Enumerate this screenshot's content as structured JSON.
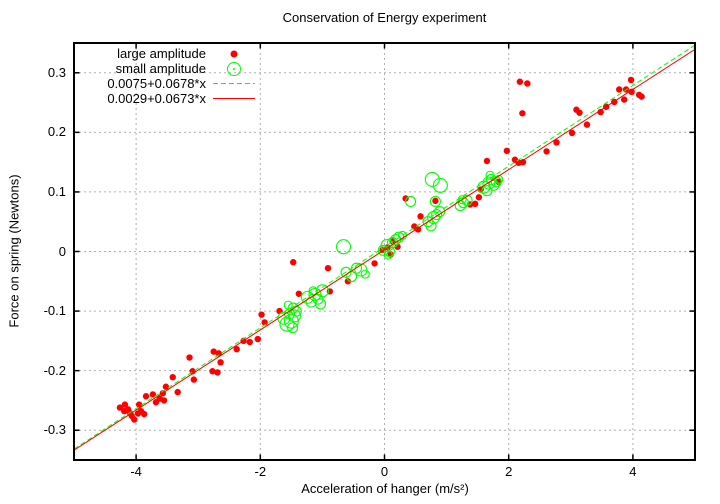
{
  "chart_data": {
    "type": "scatter",
    "title": "Conservation of Energy experiment",
    "xlabel": "Acceleration of hanger (m/s²)",
    "ylabel": "Force on spring (Newtons)",
    "xlim": [
      -5,
      5
    ],
    "ylim": [
      -0.35,
      0.35
    ],
    "xticks": [
      -4,
      -2,
      0,
      2,
      4
    ],
    "xtick_labels": [
      "-4",
      "-2",
      "0",
      "2",
      "4"
    ],
    "yticks": [
      -0.3,
      -0.2,
      -0.1,
      0,
      0.1,
      0.2,
      0.3
    ],
    "ytick_labels": [
      "-0.3",
      "-0.2",
      "-0.1",
      "0",
      "0.1",
      "0.2",
      "0.3"
    ],
    "grid": true,
    "grid_color": "#b0b0b0",
    "border_color": "#000000",
    "background": "#ffffff",
    "legend_position": "top-left-inside",
    "series": [
      {
        "name": "large amplitude",
        "type": "points",
        "marker": "filled-circle",
        "color": "#ff0000",
        "points": [
          [
            -4.26,
            -0.262
          ],
          [
            -4.19,
            -0.268
          ],
          [
            -4.18,
            -0.257
          ],
          [
            -4.13,
            -0.265
          ],
          [
            -4.1,
            -0.271
          ],
          [
            -4.07,
            -0.276
          ],
          [
            -4.03,
            -0.282
          ],
          [
            -3.97,
            -0.272
          ],
          [
            -3.95,
            -0.257
          ],
          [
            -3.92,
            -0.268
          ],
          [
            -3.87,
            -0.273
          ],
          [
            -3.84,
            -0.243
          ],
          [
            -3.73,
            -0.24
          ],
          [
            -3.68,
            -0.253
          ],
          [
            -3.62,
            -0.247
          ],
          [
            -3.57,
            -0.238
          ],
          [
            -3.55,
            -0.25
          ],
          [
            -3.52,
            -0.227
          ],
          [
            -3.41,
            -0.211
          ],
          [
            -3.33,
            -0.236
          ],
          [
            -3.14,
            -0.178
          ],
          [
            -3.09,
            -0.201
          ],
          [
            -3.07,
            -0.215
          ],
          [
            -2.77,
            -0.201
          ],
          [
            -2.75,
            -0.168
          ],
          [
            -2.69,
            -0.203
          ],
          [
            -2.67,
            -0.171
          ],
          [
            -2.64,
            -0.186
          ],
          [
            -2.38,
            -0.164
          ],
          [
            -2.27,
            -0.15
          ],
          [
            -2.17,
            -0.152
          ],
          [
            -2.04,
            -0.147
          ],
          [
            -1.98,
            -0.106
          ],
          [
            -1.93,
            -0.119
          ],
          [
            -1.69,
            -0.1
          ],
          [
            -1.47,
            -0.018
          ],
          [
            -1.38,
            -0.071
          ],
          [
            -0.91,
            -0.028
          ],
          [
            -0.88,
            -0.067
          ],
          [
            -0.59,
            -0.05
          ],
          [
            -0.16,
            -0.02
          ],
          [
            -0.03,
            0.003
          ],
          [
            0.05,
            0.007
          ],
          [
            0.1,
            -0.005
          ],
          [
            0.13,
            0.017
          ],
          [
            0.21,
            0.008
          ],
          [
            0.34,
            0.089
          ],
          [
            0.48,
            0.042
          ],
          [
            0.54,
            0.037
          ],
          [
            0.58,
            0.059
          ],
          [
            0.82,
            0.085
          ],
          [
            1.38,
            0.079
          ],
          [
            1.46,
            0.08
          ],
          [
            1.52,
            0.091
          ],
          [
            1.55,
            0.104
          ],
          [
            1.84,
            0.117
          ],
          [
            1.65,
            0.152
          ],
          [
            1.97,
            0.169
          ],
          [
            2.1,
            0.154
          ],
          [
            2.16,
            0.149
          ],
          [
            2.23,
            0.15
          ],
          [
            2.18,
            0.285
          ],
          [
            2.3,
            0.282
          ],
          [
            2.22,
            0.232
          ],
          [
            2.61,
            0.168
          ],
          [
            2.77,
            0.183
          ],
          [
            3.02,
            0.199
          ],
          [
            3.09,
            0.238
          ],
          [
            3.14,
            0.233
          ],
          [
            3.26,
            0.213
          ],
          [
            3.48,
            0.234
          ],
          [
            3.57,
            0.243
          ],
          [
            3.7,
            0.251
          ],
          [
            3.78,
            0.272
          ],
          [
            3.86,
            0.255
          ],
          [
            3.89,
            0.272
          ],
          [
            3.97,
            0.288
          ],
          [
            3.98,
            0.268
          ],
          [
            4.1,
            0.263
          ],
          [
            4.14,
            0.26
          ]
        ]
      },
      {
        "name": "small amplitude",
        "type": "points",
        "marker": "open-circle",
        "color": "#00ff00",
        "points": [
          [
            -1.62,
            -0.112,
            6
          ],
          [
            -1.57,
            -0.122,
            7
          ],
          [
            -1.55,
            -0.09,
            4
          ],
          [
            -1.53,
            -0.105,
            5
          ],
          [
            -1.5,
            -0.117,
            7
          ],
          [
            -1.48,
            -0.128,
            5
          ],
          [
            -1.47,
            -0.095,
            5
          ],
          [
            -1.45,
            -0.108,
            6
          ],
          [
            -1.42,
            -0.1,
            5
          ],
          [
            -1.24,
            -0.077,
            6
          ],
          [
            -1.18,
            -0.085,
            5
          ],
          [
            -1.15,
            -0.066,
            4
          ],
          [
            -1.12,
            -0.072,
            6
          ],
          [
            -1.07,
            -0.08,
            5
          ],
          [
            -1.03,
            -0.088,
            5
          ],
          [
            -1.0,
            -0.066,
            6
          ],
          [
            -0.66,
            0.008,
            7
          ],
          [
            -0.62,
            -0.035,
            5
          ],
          [
            -0.53,
            -0.042,
            5
          ],
          [
            -0.45,
            -0.028,
            5
          ],
          [
            -0.38,
            -0.031,
            6
          ],
          [
            -0.31,
            -0.038,
            4
          ],
          [
            -0.02,
            0.002,
            5
          ],
          [
            0.04,
            0.01,
            6
          ],
          [
            0.06,
            -0.006,
            4
          ],
          [
            0.08,
            0.0,
            5
          ],
          [
            0.13,
            0.015,
            5
          ],
          [
            0.18,
            0.02,
            5
          ],
          [
            0.23,
            0.024,
            5
          ],
          [
            0.29,
            0.027,
            4
          ],
          [
            0.42,
            0.084,
            5
          ],
          [
            0.7,
            0.05,
            5
          ],
          [
            0.75,
            0.043,
            5
          ],
          [
            0.79,
            0.057,
            6
          ],
          [
            0.84,
            0.062,
            5
          ],
          [
            0.89,
            0.067,
            5
          ],
          [
            0.77,
            0.121,
            7
          ],
          [
            0.9,
            0.111,
            7
          ],
          [
            0.82,
            0.084,
            5
          ],
          [
            1.22,
            0.077,
            5
          ],
          [
            1.25,
            0.087,
            4
          ],
          [
            1.27,
            0.082,
            5
          ],
          [
            1.33,
            0.086,
            5
          ],
          [
            1.6,
            0.108,
            6
          ],
          [
            1.65,
            0.102,
            5
          ],
          [
            1.68,
            0.115,
            6
          ],
          [
            1.72,
            0.121,
            5
          ],
          [
            1.76,
            0.111,
            5
          ],
          [
            1.8,
            0.117,
            5
          ],
          [
            1.84,
            0.121,
            4
          ],
          [
            1.7,
            0.128,
            4
          ]
        ]
      },
      {
        "name": "0.0075+0.0678*x",
        "type": "line",
        "style": "dashed",
        "color": "#00ff00",
        "intercept": 0.0075,
        "slope": 0.0678
      },
      {
        "name": "0.0029+0.0673*x",
        "type": "line",
        "style": "solid",
        "color": "#ff0000",
        "intercept": 0.0029,
        "slope": 0.0673
      }
    ]
  }
}
